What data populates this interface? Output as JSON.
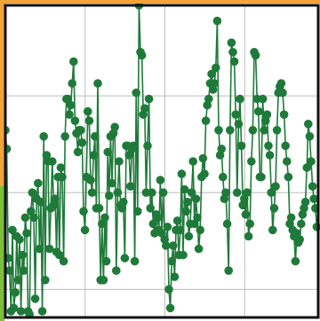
{
  "colors": {
    "series": "#1f7a3a",
    "grid": "#bdbdbd",
    "frame": "#111111",
    "accent_left_top": "#f2a33a",
    "accent_left_bottom": "#7bbf3a",
    "accent_top": "#f2a33a"
  },
  "chart_data": {
    "type": "line",
    "title": "",
    "xlabel": "",
    "ylabel": "",
    "grid": true,
    "markers": true,
    "xlim": [
      0,
      220
    ],
    "ylim": [
      0,
      100
    ],
    "series": [
      {
        "name": "",
        "x": [
          0,
          1,
          2,
          3,
          4,
          5,
          6,
          7,
          8,
          9,
          10,
          11,
          12,
          13,
          14,
          15,
          16,
          17,
          18,
          19,
          20,
          21,
          22,
          23,
          24,
          25,
          26,
          27,
          28,
          29,
          30,
          31,
          32,
          33,
          34,
          35,
          36,
          37,
          38,
          39,
          40,
          41,
          42,
          43,
          44,
          45,
          46,
          47,
          48,
          49,
          50,
          51,
          52,
          53,
          54,
          55,
          56,
          57,
          58,
          59,
          60,
          61,
          62,
          63,
          64,
          65,
          66,
          67,
          68,
          69,
          70,
          71,
          72,
          73,
          74,
          75,
          76,
          77,
          78,
          79,
          80,
          81,
          82,
          83,
          84,
          85,
          86,
          87,
          88,
          89,
          90,
          91,
          92,
          93,
          94,
          95,
          96,
          97,
          98,
          99,
          100,
          101,
          102,
          103,
          104,
          105,
          106,
          107,
          108,
          109,
          110,
          111,
          112,
          113,
          114,
          115,
          116,
          117,
          118,
          119,
          120,
          121,
          122,
          123,
          124,
          125,
          126,
          127,
          128,
          129,
          130,
          131,
          132,
          133,
          134,
          135,
          136,
          137,
          138,
          139,
          140,
          141,
          142,
          143,
          144,
          145,
          146,
          147,
          148,
          149,
          150,
          151,
          152,
          153,
          154,
          155,
          156,
          157,
          158,
          159,
          160,
          161,
          162,
          163,
          164,
          165,
          166,
          167,
          168,
          169,
          170,
          171,
          172,
          173,
          174,
          175,
          176,
          177,
          178,
          179,
          180,
          181,
          182,
          183,
          184,
          185,
          186,
          187,
          188,
          189,
          190,
          191,
          192,
          193,
          194,
          195,
          196,
          197,
          198,
          199,
          200,
          201,
          202,
          203,
          204,
          205,
          206,
          207,
          208,
          209,
          210,
          211,
          212,
          213,
          214,
          215,
          216,
          217,
          218,
          219
        ],
        "values": [
          60,
          54,
          19,
          15,
          2,
          28,
          3,
          8,
          26,
          12,
          25,
          2,
          20,
          15,
          32,
          27,
          2,
          1,
          34,
          40,
          32,
          6,
          38,
          43,
          22,
          37,
          2,
          58,
          12,
          52,
          50,
          22,
          35,
          50,
          36,
          38,
          21,
          45,
          20,
          48,
          45,
          18,
          58,
          70,
          70,
          65,
          68,
          75,
          82,
          63,
          59,
          53,
          60,
          60,
          56,
          34,
          28,
          45,
          66,
          63,
          44,
          40,
          52,
          58,
          35,
          75,
          35,
          12,
          30,
          12,
          32,
          18,
          53,
          39,
          58,
          43,
          59,
          61,
          15,
          40,
          50,
          36,
          35,
          37,
          19,
          55,
          55,
          52,
          42,
          54,
          55,
          18,
          72,
          34,
          100,
          85,
          84,
          65,
          67,
          40,
          55,
          70,
          35,
          40,
          30,
          27,
          33,
          32,
          28,
          44,
          27,
          40,
          25,
          23,
          29,
          9,
          3,
          18,
          23,
          13,
          28,
          31,
          20,
          28,
          46,
          20,
          41,
          34,
          37,
          26,
          30,
          40,
          50,
          30,
          38,
          32,
          22,
          28,
          45,
          51,
          46,
          63,
          68,
          70,
          75,
          78,
          73,
          75,
          80,
          95,
          60,
          52,
          54,
          45,
          38,
          40,
          30,
          15,
          60,
          88,
          85,
          82,
          65,
          40,
          62,
          70,
          55,
          36,
          38,
          33,
          40,
          26,
          30,
          50,
          60,
          85,
          84,
          70,
          66,
          45,
          45,
          70,
          60,
          63,
          65,
          55,
          52,
          40,
          28,
          35,
          42,
          60,
          72,
          74,
          75,
          72,
          65,
          55,
          50,
          45,
          30,
          32,
          28,
          26,
          18,
          27,
          24,
          25,
          30,
          33,
          35,
          37,
          48,
          62,
          58,
          50,
          42,
          38,
          35,
          29
        ]
      }
    ]
  }
}
